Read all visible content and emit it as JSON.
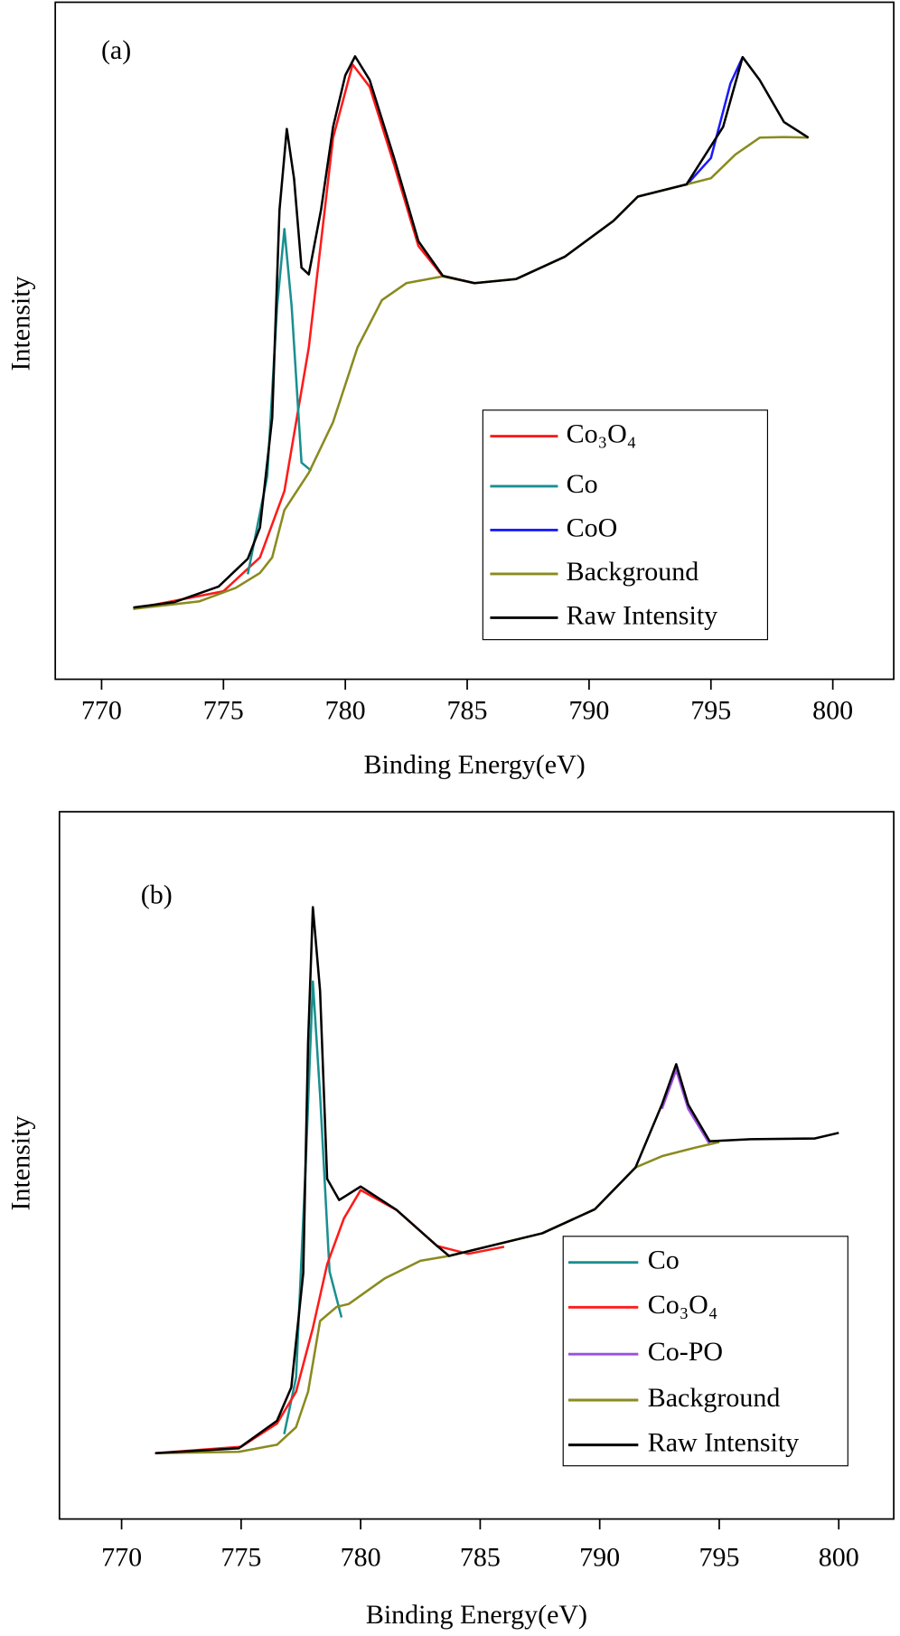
{
  "chart_data": [
    {
      "type": "line",
      "label": "(a)",
      "x_label": "Binding Energy(eV)",
      "y_label": "Intensity",
      "xlim": [
        768.1,
        802.5
      ],
      "ylim": [
        0,
        100
      ],
      "xticks": [
        770,
        775,
        780,
        785,
        790,
        795,
        800
      ],
      "legend": "lower-right",
      "series": [
        {
          "name": "Co₃O₄",
          "color": "#ff1a1a",
          "x": [
            771.3,
            775,
            776.5,
            777.5,
            778.5,
            779.5,
            780.3,
            781,
            782,
            783,
            784,
            785.3
          ],
          "values": [
            10.4,
            13,
            18,
            27.8,
            49,
            80,
            90.8,
            87.5,
            76,
            64,
            59.5,
            58.5
          ]
        },
        {
          "name": "Co",
          "color": "#1a8f8f",
          "x": [
            776,
            776.8,
            777.2,
            777.5,
            777.8,
            778.2,
            778.6
          ],
          "values": [
            15.5,
            30,
            55,
            66.5,
            55,
            32,
            30.8
          ]
        },
        {
          "name": "CoO",
          "color": "#1a1aff",
          "x": [
            794,
            795,
            795.8,
            796.3
          ],
          "values": [
            73,
            77,
            88,
            91.9
          ]
        },
        {
          "name": "Background",
          "color": "#8a8a1f",
          "x": [
            771.3,
            774,
            775.5,
            776.5,
            777,
            777.5,
            778.5,
            779.5,
            780.5,
            781.5,
            782.5,
            784,
            785.3,
            787,
            789,
            791,
            792,
            794,
            795,
            796,
            797,
            798,
            799
          ],
          "values": [
            10.4,
            11.5,
            13.5,
            15.7,
            18,
            25,
            30.5,
            38,
            49,
            56,
            58.5,
            59.5,
            58.5,
            59.1,
            62.4,
            67.7,
            71.3,
            73.1,
            74,
            77.5,
            80,
            80.1,
            80
          ]
        },
        {
          "name": "Raw Intensity",
          "color": "#000000",
          "x": [
            771.3,
            773,
            774.8,
            776,
            776.5,
            777,
            777.3,
            777.6,
            777.9,
            778.2,
            778.5,
            779,
            779.5,
            780,
            780.4,
            781,
            782,
            783,
            784,
            785.3,
            787,
            789,
            791,
            792,
            794,
            795.5,
            796.3,
            797,
            798,
            799
          ],
          "values": [
            10.6,
            11.4,
            13.7,
            17.8,
            22.4,
            38.6,
            69.3,
            81.3,
            73.9,
            60.8,
            59.8,
            69.3,
            81.6,
            89.2,
            92,
            88.5,
            77,
            64.7,
            59.6,
            58.5,
            59.1,
            62.4,
            67.7,
            71.3,
            73.1,
            81.6,
            91.9,
            88.5,
            82.3,
            80
          ]
        }
      ]
    },
    {
      "type": "line",
      "label": "(b)",
      "x_label": "Binding Energy(eV)",
      "y_label": "Intensity",
      "xlim": [
        767.4,
        802.3
      ],
      "ylim": [
        0,
        100
      ],
      "xticks": [
        770,
        775,
        780,
        785,
        790,
        795,
        800
      ],
      "legend": "lower-right",
      "series": [
        {
          "name": "Co",
          "color": "#1a8f8f",
          "x": [
            776.8,
            777.3,
            777.7,
            778,
            778.3,
            778.7,
            779.2
          ],
          "values": [
            12,
            20,
            50,
            76,
            60,
            35,
            28.5
          ]
        },
        {
          "name": "Co₃O₄",
          "color": "#ff1a1a",
          "x": [
            771.4,
            775,
            776.5,
            777.3,
            778,
            778.6,
            779.3,
            780,
            781.5,
            783.2,
            784.5,
            786
          ],
          "values": [
            9.3,
            10.2,
            13.5,
            18,
            27,
            36,
            42.5,
            46.5,
            43.7,
            38.6,
            37.5,
            38.5
          ]
        },
        {
          "name": "Co-PO",
          "color": "#9b4fe0",
          "x": [
            792.6,
            793.2,
            793.7,
            794.6
          ],
          "values": [
            58,
            63.5,
            58,
            53
          ]
        },
        {
          "name": "Background",
          "color": "#8a8a1f",
          "x": [
            771.4,
            774.9,
            776.5,
            777.3,
            777.8,
            778.3,
            779,
            779.5,
            781,
            782.5,
            783.7,
            787.6,
            789.8,
            791.5,
            792.6,
            794,
            795
          ],
          "values": [
            9.3,
            9.5,
            10.5,
            13,
            18,
            28,
            30,
            30.4,
            34,
            36.5,
            37.2,
            40.4,
            43.8,
            49.7,
            51.3,
            52.5,
            53.3
          ]
        },
        {
          "name": "Raw Intensity",
          "color": "#000000",
          "x": [
            771.4,
            774.9,
            776.5,
            777.1,
            777.6,
            777.8,
            778,
            778.3,
            778.6,
            779.1,
            780,
            781.5,
            783.2,
            783.7,
            787.6,
            789.8,
            791.5,
            792.6,
            793.2,
            793.7,
            794.6,
            796.3,
            799,
            800
          ],
          "values": [
            9.3,
            10,
            13.9,
            18.6,
            34.8,
            67.3,
            86.5,
            74.7,
            48.1,
            45.1,
            47,
            43.7,
            38.6,
            37.2,
            40.4,
            43.8,
            49.7,
            58.6,
            64.3,
            58.6,
            53.4,
            53.7,
            53.8,
            54.6
          ]
        }
      ]
    }
  ]
}
